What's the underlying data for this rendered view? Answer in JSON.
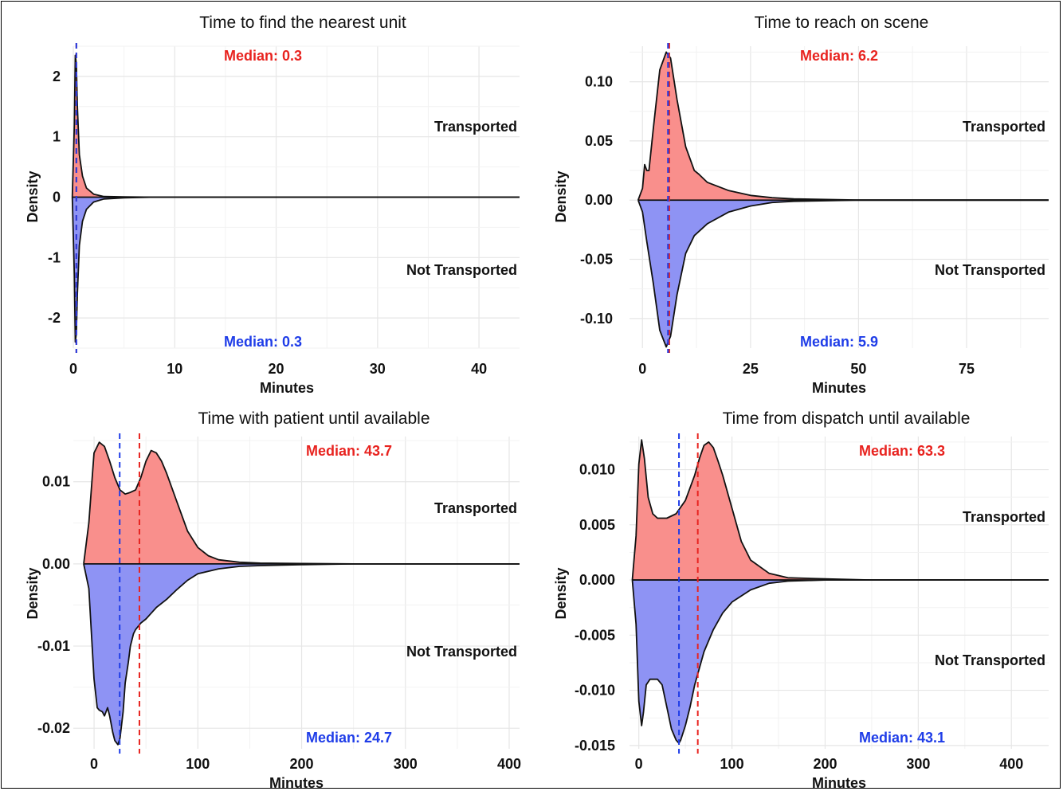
{
  "chart_data": [
    {
      "type": "area",
      "title": "Time to find the nearest unit",
      "xlabel": "Minutes",
      "ylabel": "Density",
      "xlim": [
        0,
        44
      ],
      "ylim": [
        -2.5,
        2.5
      ],
      "xticks": [
        0,
        10,
        20,
        30,
        40
      ],
      "yticks": [
        2,
        1,
        0,
        -1,
        -2
      ],
      "ytick_labels": [
        "2",
        "1",
        "0",
        "-1",
        "-2"
      ],
      "groups": [
        "Transported",
        "Not Transported"
      ],
      "series": [
        {
          "name": "Transported",
          "x": [
            -0.1,
            0.1,
            0.2,
            0.3,
            0.4,
            0.6,
            0.9,
            1.3,
            2,
            3,
            5,
            8,
            15,
            44
          ],
          "values": [
            0,
            1.2,
            2.35,
            2.2,
            1.5,
            0.7,
            0.35,
            0.15,
            0.05,
            0.01,
            0.005,
            0,
            0,
            0
          ]
        },
        {
          "name": "Not Transported",
          "x": [
            -0.1,
            0.1,
            0.2,
            0.3,
            0.4,
            0.6,
            0.9,
            1.3,
            2,
            3,
            5,
            8,
            15,
            44
          ],
          "values": [
            0,
            -1.3,
            -2.4,
            -2.25,
            -1.6,
            -0.8,
            -0.4,
            -0.2,
            -0.08,
            -0.03,
            -0.01,
            0,
            0,
            0
          ]
        }
      ],
      "medians": [
        {
          "group": "Transported",
          "label": "Median: 0.3",
          "value": 0.3,
          "color": "#e8231f"
        },
        {
          "group": "Not Transported",
          "label": "Median: 0.3",
          "value": 0.3,
          "color": "#1f3de8"
        }
      ],
      "colors": {
        "Transported": "#f98f8c",
        "Not Transported": "#8e93f4"
      }
    },
    {
      "type": "area",
      "title": "Time to reach on scene",
      "xlabel": "Minutes",
      "ylabel": "Density",
      "xlim": [
        -3,
        94
      ],
      "ylim": [
        -0.125,
        0.13
      ],
      "xticks": [
        0,
        25,
        50,
        75
      ],
      "yticks": [
        0.1,
        0.05,
        0.0,
        -0.05,
        -0.1
      ],
      "ytick_labels": [
        "0.10",
        "0.05",
        "0.00",
        "-0.05",
        "-0.10"
      ],
      "groups": [
        "Transported",
        "Not Transported"
      ],
      "series": [
        {
          "name": "Transported",
          "x": [
            -1,
            0,
            0.5,
            1,
            1.5,
            2.5,
            4,
            5.5,
            6.5,
            8,
            10,
            12,
            13,
            15,
            20,
            25,
            30,
            35,
            50,
            94
          ],
          "values": [
            0,
            0.01,
            0.03,
            0.025,
            0.025,
            0.06,
            0.11,
            0.125,
            0.12,
            0.085,
            0.045,
            0.025,
            0.022,
            0.015,
            0.008,
            0.004,
            0.002,
            0.001,
            0,
            0
          ]
        },
        {
          "name": "Not Transported",
          "x": [
            -1,
            0,
            1,
            2.5,
            4,
            5.5,
            6.5,
            8,
            10,
            12,
            15,
            20,
            25,
            30,
            35,
            50,
            94
          ],
          "values": [
            0,
            -0.01,
            -0.035,
            -0.07,
            -0.11,
            -0.124,
            -0.115,
            -0.08,
            -0.045,
            -0.03,
            -0.02,
            -0.01,
            -0.005,
            -0.002,
            -0.001,
            0,
            0
          ]
        }
      ],
      "medians": [
        {
          "group": "Transported",
          "label": "Median: 6.2",
          "value": 6.2,
          "color": "#e8231f"
        },
        {
          "group": "Not Transported",
          "label": "Median: 5.9",
          "value": 5.9,
          "color": "#1f3de8"
        }
      ],
      "colors": {
        "Transported": "#f98f8c",
        "Not Transported": "#8e93f4"
      }
    },
    {
      "type": "area",
      "title": "Time with patient until available",
      "xlabel": "Minutes",
      "ylabel": "Density",
      "xlim": [
        -20,
        410
      ],
      "ylim": [
        -0.0225,
        0.0155
      ],
      "xticks": [
        0,
        100,
        200,
        300,
        400
      ],
      "yticks": [
        0.01,
        0.0,
        -0.01,
        -0.02
      ],
      "ytick_labels": [
        "0.01",
        "0.00",
        "-0.01",
        "-0.02"
      ],
      "groups": [
        "Transported",
        "Not Transported"
      ],
      "series": [
        {
          "name": "Transported",
          "x": [
            -10,
            -5,
            0,
            5,
            10,
            15,
            20,
            25,
            30,
            35,
            40,
            45,
            50,
            55,
            60,
            65,
            70,
            80,
            90,
            100,
            110,
            120,
            140,
            160,
            200,
            250,
            300,
            410
          ],
          "values": [
            0,
            0.005,
            0.0135,
            0.0148,
            0.0143,
            0.0125,
            0.0105,
            0.009,
            0.0085,
            0.0087,
            0.009,
            0.0105,
            0.0125,
            0.0138,
            0.0135,
            0.0125,
            0.011,
            0.0075,
            0.004,
            0.002,
            0.001,
            0.0005,
            0.0002,
            0.0001,
            5e-05,
            0,
            0,
            0
          ]
        },
        {
          "name": "Not Transported",
          "x": [
            -10,
            -5,
            0,
            3,
            5,
            8,
            10,
            13,
            15,
            18,
            20,
            23,
            25,
            28,
            30,
            33,
            35,
            38,
            40,
            45,
            50,
            55,
            60,
            70,
            80,
            90,
            100,
            120,
            140,
            160,
            200,
            250,
            300,
            410
          ],
          "values": [
            0,
            -0.003,
            -0.014,
            -0.0175,
            -0.0178,
            -0.018,
            -0.0185,
            -0.0175,
            -0.0185,
            -0.0205,
            -0.0215,
            -0.022,
            -0.0212,
            -0.018,
            -0.0145,
            -0.012,
            -0.01,
            -0.0085,
            -0.008,
            -0.0072,
            -0.0067,
            -0.006,
            -0.0053,
            -0.0043,
            -0.0031,
            -0.002,
            -0.0012,
            -0.0006,
            -0.0003,
            -0.0002,
            -0.0001,
            0,
            0,
            0
          ]
        }
      ],
      "medians": [
        {
          "group": "Transported",
          "label": "Median: 43.7",
          "value": 43.7,
          "color": "#e8231f"
        },
        {
          "group": "Not Transported",
          "label": "Median: 24.7",
          "value": 24.7,
          "color": "#1f3de8"
        }
      ],
      "colors": {
        "Transported": "#f98f8c",
        "Not Transported": "#8e93f4"
      }
    },
    {
      "type": "area",
      "title": "Time from dispatch until available",
      "xlabel": "Minutes",
      "ylabel": "Density",
      "xlim": [
        -10,
        440
      ],
      "ylim": [
        -0.0153,
        0.013
      ],
      "xticks": [
        0,
        100,
        200,
        300,
        400
      ],
      "yticks": [
        0.01,
        0.005,
        0.0,
        -0.005,
        -0.01,
        -0.015
      ],
      "ytick_labels": [
        "0.010",
        "0.005",
        "0.000",
        "-0.005",
        "-0.010",
        "-0.015"
      ],
      "groups": [
        "Transported",
        "Not Transported"
      ],
      "series": [
        {
          "name": "Transported",
          "x": [
            -7,
            -3,
            0,
            3,
            6,
            10,
            15,
            20,
            30,
            40,
            50,
            60,
            65,
            70,
            75,
            80,
            85,
            90,
            100,
            110,
            120,
            140,
            160,
            200,
            250,
            300,
            440
          ],
          "values": [
            0,
            0.004,
            0.0105,
            0.0127,
            0.011,
            0.0075,
            0.006,
            0.0056,
            0.0056,
            0.006,
            0.0072,
            0.0095,
            0.011,
            0.0122,
            0.0125,
            0.012,
            0.0108,
            0.0095,
            0.0065,
            0.0035,
            0.0018,
            0.0006,
            0.0002,
            0.0001,
            0,
            0,
            0
          ]
        },
        {
          "name": "Not Transported",
          "x": [
            -7,
            -3,
            0,
            3,
            5,
            8,
            12,
            15,
            20,
            25,
            30,
            35,
            40,
            43,
            45,
            50,
            55,
            60,
            70,
            80,
            90,
            100,
            120,
            140,
            160,
            200,
            250,
            300,
            440
          ],
          "values": [
            0,
            -0.004,
            -0.011,
            -0.0132,
            -0.012,
            -0.0095,
            -0.009,
            -0.009,
            -0.009,
            -0.0095,
            -0.0115,
            -0.0135,
            -0.0145,
            -0.0148,
            -0.0145,
            -0.0132,
            -0.0115,
            -0.0095,
            -0.0065,
            -0.0045,
            -0.003,
            -0.002,
            -0.0009,
            -0.0003,
            -0.0001,
            0,
            0,
            0,
            0
          ]
        }
      ],
      "medians": [
        {
          "group": "Transported",
          "label": "Median: 63.3",
          "value": 63.3,
          "color": "#e8231f"
        },
        {
          "group": "Not Transported",
          "label": "Median: 43.1",
          "value": 43.1,
          "color": "#1f3de8"
        }
      ],
      "colors": {
        "Transported": "#f98f8c",
        "Not Transported": "#8e93f4"
      }
    }
  ]
}
